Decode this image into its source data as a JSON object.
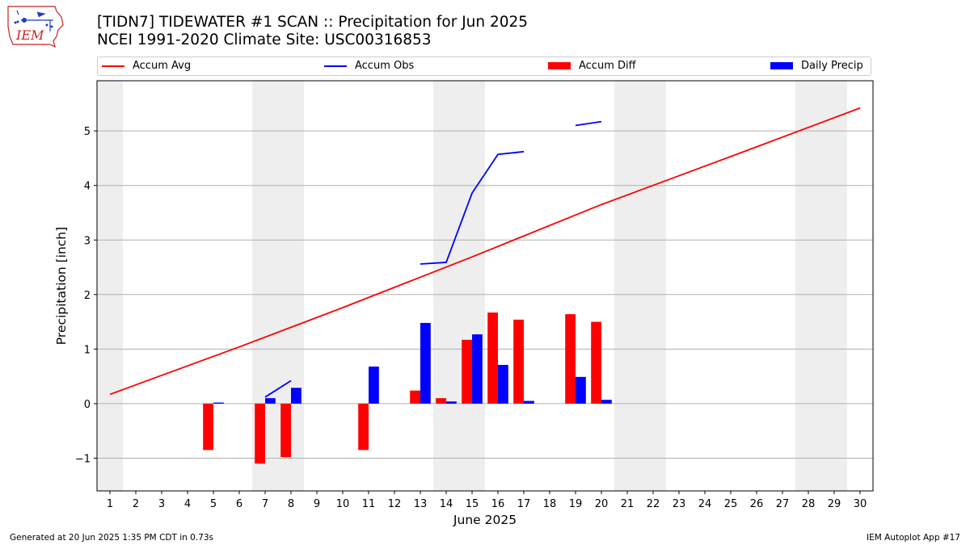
{
  "logo": {
    "text": "IEM",
    "colors": {
      "outline": "#cc2222",
      "symbols": "#1f3fbf"
    }
  },
  "header": {
    "title": "[TIDN7] TIDEWATER #1 SCAN :: Precipitation for Jun 2025",
    "subtitle": "NCEI 1991-2020 Climate Site: USC00316853"
  },
  "footer": {
    "generated": "Generated at 20 Jun 2025 1:35 PM CDT in 0.73s",
    "app": "IEM Autoplot App #17"
  },
  "chart_data": {
    "type": "bar",
    "title": "[TIDN7] TIDEWATER #1 SCAN :: Precipitation for Jun 2025",
    "xlabel": "June 2025",
    "ylabel": "Precipitation [inch]",
    "x": [
      1,
      2,
      3,
      4,
      5,
      6,
      7,
      8,
      9,
      10,
      11,
      12,
      13,
      14,
      15,
      16,
      17,
      18,
      19,
      20,
      21,
      22,
      23,
      24,
      25,
      26,
      27,
      28,
      29,
      30
    ],
    "xlim": [
      0.5,
      30.5
    ],
    "ylim": [
      -1.6,
      5.92
    ],
    "yticks": [
      -1,
      0,
      1,
      2,
      3,
      4,
      5
    ],
    "ytick_labels": [
      "−1",
      "0",
      "1",
      "2",
      "3",
      "4",
      "5"
    ],
    "grid": "horizontal",
    "legend_position": "top",
    "weekend_shading": [
      [
        0.5,
        1.5
      ],
      [
        6.5,
        8.5
      ],
      [
        13.5,
        15.5
      ],
      [
        20.5,
        22.5
      ],
      [
        27.5,
        29.5
      ]
    ],
    "series": [
      {
        "name": "Accum Avg",
        "kind": "line",
        "color": "#ff0000",
        "x": [
          1,
          6,
          10,
          15,
          20,
          25,
          30
        ],
        "values": [
          0.17,
          1.04,
          1.76,
          2.69,
          3.65,
          4.53,
          5.42
        ]
      },
      {
        "name": "Accum Obs",
        "kind": "line",
        "color": "#0000ff",
        "segments": [
          {
            "x": [
              7,
              8
            ],
            "values": [
              0.12,
              0.42
            ]
          },
          {
            "x": [
              13,
              14,
              15,
              16,
              17
            ],
            "values": [
              2.56,
              2.59,
              3.86,
              4.57,
              4.62
            ]
          },
          {
            "x": [
              19,
              20
            ],
            "values": [
              5.1,
              5.17
            ]
          }
        ]
      },
      {
        "name": "Accum Diff",
        "kind": "bar",
        "color": "#ff0000",
        "x": [
          5,
          7,
          8,
          11,
          13,
          14,
          15,
          16,
          17,
          19,
          20
        ],
        "values": [
          -0.85,
          -1.1,
          -0.98,
          -0.85,
          0.24,
          0.1,
          1.17,
          1.67,
          1.54,
          1.64,
          1.5
        ]
      },
      {
        "name": "Daily Precip",
        "kind": "bar",
        "color": "#0000ff",
        "x": [
          5,
          7,
          8,
          11,
          13,
          14,
          15,
          16,
          17,
          19,
          20
        ],
        "values": [
          0.02,
          0.1,
          0.29,
          0.68,
          1.48,
          0.04,
          1.27,
          0.71,
          0.05,
          0.49,
          0.07
        ]
      }
    ]
  }
}
